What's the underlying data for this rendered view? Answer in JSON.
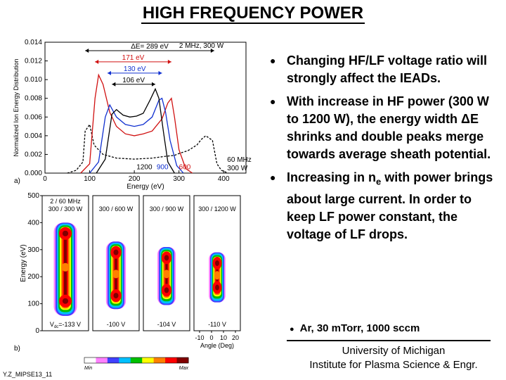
{
  "slide": {
    "title": "HIGH FREQUENCY POWER",
    "bullets": [
      {
        "pre": "Changing HF/LF voltage ratio will strongly affect the IEADs.",
        "sub": "",
        "post": ""
      },
      {
        "pre": "With increase in HF power (300 W to 1200 W), the energy width ΔE shrinks and double peaks merge towards average sheath potential.",
        "sub": "",
        "post": ""
      },
      {
        "pre": "Increasing in n",
        "sub": "e",
        "post": " with power brings about large current. In order to keep LF power constant, the voltage of LF drops."
      }
    ],
    "conditions": "Ar, 30 mTorr, 1000 sccm",
    "affiliation_1": "University of Michigan",
    "affiliation_2": "Institute for Plasma Science & Engr.",
    "footnote": "Y.Z_MIPSE13_11"
  },
  "chart_data": [
    {
      "type": "line",
      "panel_label": "a)",
      "xlabel": "Energy (eV)",
      "ylabel": "Normalized Ion Energy Distribution",
      "xlim": [
        0,
        450
      ],
      "ylim": [
        0,
        0.014
      ],
      "x_ticks": [
        "0",
        "100",
        "200",
        "300",
        "400"
      ],
      "y_ticks": [
        "0.000",
        "0.002",
        "0.004",
        "0.006",
        "0.008",
        "0.010",
        "0.012",
        "0.014"
      ],
      "annotations": [
        {
          "text": "ΔE= 289 eV",
          "color": "#000000"
        },
        {
          "text": "171 eV",
          "color": "#d01010"
        },
        {
          "text": "130 eV",
          "color": "#1030d0"
        },
        {
          "text": "106 eV",
          "color": "#000000"
        },
        {
          "text": "2 MHz, 300 W",
          "color": "#000000"
        },
        {
          "text": "60 MHz",
          "color": "#000000"
        },
        {
          "text": "300 W",
          "color": "#000000"
        },
        {
          "text": "1200",
          "color": "#000000"
        },
        {
          "text": "900",
          "color": "#1030d0"
        },
        {
          "text": "600",
          "color": "#d01010"
        }
      ],
      "series": [
        {
          "color": "#000000",
          "style": "dashed",
          "x": [
            50,
            70,
            85,
            90,
            100,
            110,
            130,
            160,
            200,
            240,
            270,
            290,
            300,
            320,
            340,
            350,
            360,
            375,
            385,
            395,
            410
          ],
          "y": [
            0.0,
            0.0003,
            0.0012,
            0.0045,
            0.0052,
            0.003,
            0.002,
            0.0016,
            0.0015,
            0.0016,
            0.0018,
            0.0019,
            0.0021,
            0.0024,
            0.003,
            0.0036,
            0.004,
            0.0035,
            0.001,
            0.0003,
            0.0
          ]
        },
        {
          "color": "#d01010",
          "style": "solid",
          "x": [
            80,
            100,
            112,
            120,
            130,
            145,
            160,
            180,
            200,
            220,
            240,
            262,
            275,
            283,
            290,
            300,
            315,
            330
          ],
          "y": [
            0.0,
            0.001,
            0.008,
            0.0105,
            0.0095,
            0.0065,
            0.005,
            0.0042,
            0.004,
            0.0042,
            0.0045,
            0.0058,
            0.0075,
            0.008,
            0.006,
            0.0025,
            0.0005,
            0.0
          ]
        },
        {
          "color": "#1030d0",
          "style": "solid",
          "x": [
            100,
            120,
            135,
            145,
            160,
            180,
            200,
            220,
            240,
            255,
            262,
            270,
            280,
            295,
            310
          ],
          "y": [
            0.0,
            0.0012,
            0.006,
            0.0073,
            0.006,
            0.0052,
            0.005,
            0.0052,
            0.006,
            0.0078,
            0.008,
            0.0065,
            0.0035,
            0.0008,
            0.0
          ]
        },
        {
          "color": "#000000",
          "style": "solid",
          "x": [
            115,
            135,
            150,
            160,
            175,
            190,
            205,
            220,
            235,
            247,
            255,
            265,
            275,
            290
          ],
          "y": [
            0.0,
            0.0015,
            0.0063,
            0.0068,
            0.0062,
            0.006,
            0.0061,
            0.0064,
            0.0078,
            0.009,
            0.008,
            0.0045,
            0.0012,
            0.0
          ]
        }
      ]
    },
    {
      "type": "heatmap",
      "panel_label": "b)",
      "xlabel": "Angle (Deg)",
      "ylabel": "Energy (eV)",
      "ylim": [
        0,
        500
      ],
      "y_ticks": [
        "0",
        "100",
        "200",
        "300",
        "400",
        "500"
      ],
      "x_ticks": [
        "-10",
        "0",
        "10",
        "20"
      ],
      "colorbar": {
        "min_label": "Min",
        "max_label": "Max",
        "colors": [
          "#ffffff",
          "#ff80ff",
          "#4040ff",
          "#00c0ff",
          "#00c000",
          "#ffff00",
          "#ff8000",
          "#ff0000",
          "#800000"
        ]
      },
      "panels": [
        {
          "header_1": "2 / 60 MHz",
          "header_2": "300 / 300 W",
          "vdc": "V",
          "vdc_sub": "dc",
          "vdc_post": "=-133 V",
          "e_min": 55,
          "e_max": 400,
          "peak_low": 110,
          "peak_high": 360,
          "half_width_deg": 7
        },
        {
          "header_1": "",
          "header_2": "300 / 600 W",
          "vdc": "-100 V",
          "vdc_sub": "",
          "vdc_post": "",
          "e_min": 80,
          "e_max": 330,
          "peak_low": 130,
          "peak_high": 290,
          "half_width_deg": 6
        },
        {
          "header_1": "",
          "header_2": "300 / 900 W",
          "vdc": "-104 V",
          "vdc_sub": "",
          "vdc_post": "",
          "e_min": 95,
          "e_max": 310,
          "peak_low": 150,
          "peak_high": 270,
          "half_width_deg": 5.5
        },
        {
          "header_1": "",
          "header_2": "300 / 1200 W",
          "vdc": "-110 V",
          "vdc_sub": "",
          "vdc_post": "",
          "e_min": 105,
          "e_max": 290,
          "peak_low": 160,
          "peak_high": 250,
          "half_width_deg": 5
        }
      ]
    }
  ]
}
